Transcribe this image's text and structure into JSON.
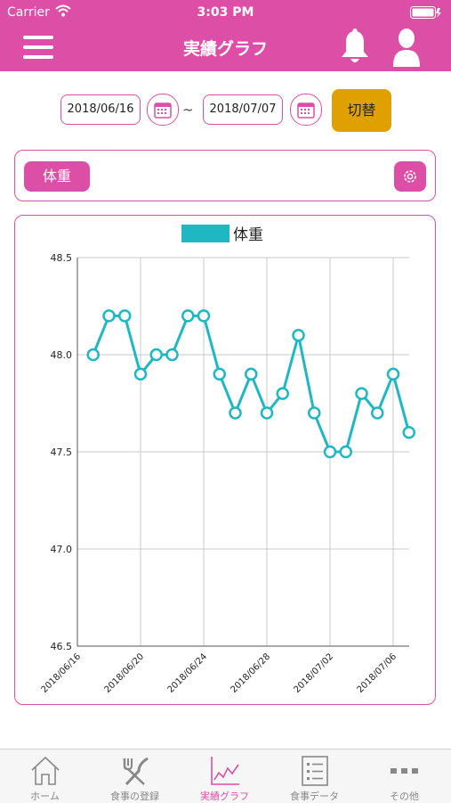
{
  "status": {
    "carrier": "Carrier",
    "time": "3:03 PM"
  },
  "nav": {
    "title": "実績グラフ"
  },
  "range": {
    "start": "2018/06/16",
    "separator": "~",
    "end": "2018/07/07",
    "switch_label": "切替"
  },
  "metric": {
    "label": "体重"
  },
  "colors": {
    "accent": "#dd4fa7",
    "series": "#1fb8c2",
    "switch": "#e0a100"
  },
  "chart_data": {
    "type": "line",
    "legend": "体重",
    "legend_position": "top",
    "ylim": [
      46.5,
      48.5
    ],
    "yticks": [
      "48.5",
      "48.0",
      "47.5",
      "47.0",
      "46.5"
    ],
    "xtick_labels": [
      "2018/06/16",
      "2018/06/20",
      "2018/06/24",
      "2018/06/28",
      "2018/07/02",
      "2018/07/06"
    ],
    "x": [
      "2018/06/17",
      "2018/06/18",
      "2018/06/19",
      "2018/06/20",
      "2018/06/21",
      "2018/06/22",
      "2018/06/23",
      "2018/06/24",
      "2018/06/25",
      "2018/06/26",
      "2018/06/27",
      "2018/06/28",
      "2018/06/29",
      "2018/06/30",
      "2018/07/01",
      "2018/07/02",
      "2018/07/03",
      "2018/07/04",
      "2018/07/05",
      "2018/07/06",
      "2018/07/07"
    ],
    "series": [
      {
        "name": "体重",
        "values": [
          48.0,
          48.2,
          48.2,
          47.9,
          48.0,
          48.0,
          48.2,
          48.2,
          47.9,
          47.7,
          47.9,
          47.7,
          47.8,
          48.1,
          47.7,
          47.5,
          47.5,
          47.8,
          47.7,
          47.9,
          47.6
        ]
      }
    ],
    "grid": true
  },
  "tabs": [
    {
      "label": "ホーム",
      "icon": "home-icon"
    },
    {
      "label": "食事の登録",
      "icon": "fork-knife-icon"
    },
    {
      "label": "実績グラフ",
      "icon": "chart-icon",
      "active": true
    },
    {
      "label": "食事データ",
      "icon": "list-icon"
    },
    {
      "label": "その他",
      "icon": "more-icon"
    }
  ]
}
